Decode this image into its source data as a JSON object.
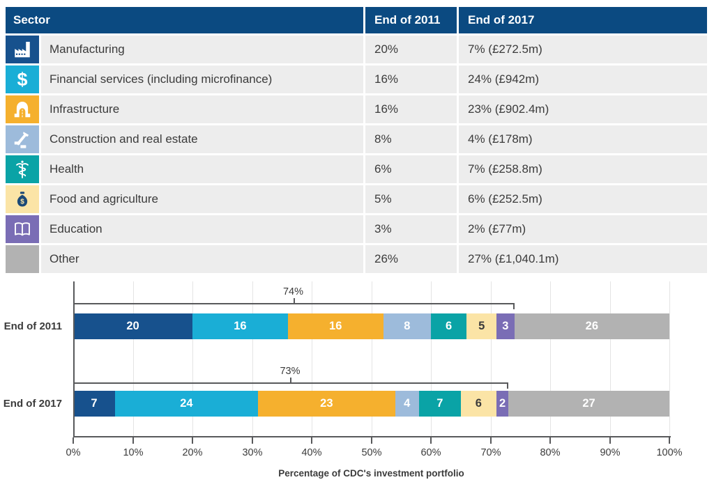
{
  "colors": {
    "header_bar": "#0B4A81",
    "row_background": "#EDEDED",
    "text": "#3B3B3B",
    "axis": "#58595B",
    "gridline": "#E4E4E4"
  },
  "table": {
    "header": {
      "sector": "Sector",
      "col2011": "End of 2011",
      "col2017": "End of 2017"
    },
    "rows": [
      {
        "sector": "Manufacturing",
        "v2011": "20%",
        "v2017": "7% (£272.5m)",
        "icon": "factory-icon",
        "color": "#17518D"
      },
      {
        "sector": "Financial services (including microfinance)",
        "v2011": "16%",
        "v2017": "24% (£942m)",
        "icon": "dollar-icon",
        "color": "#1AAED6"
      },
      {
        "sector": "Infrastructure",
        "v2011": "16%",
        "v2017": "23% (£902.4m)",
        "icon": "road-icon",
        "color": "#F5B02E"
      },
      {
        "sector": "Construction and real estate",
        "v2011": "8%",
        "v2017": "4% (£178m)",
        "icon": "hammer-icon",
        "color": "#9DBBDB"
      },
      {
        "sector": "Health",
        "v2011": "6%",
        "v2017": "7% (£258.8m)",
        "icon": "caduceus-icon",
        "color": "#0AA3A6"
      },
      {
        "sector": "Food and agriculture",
        "v2011": "5%",
        "v2017": "6% (£252.5m)",
        "icon": "money-bag-icon",
        "color": "#FBE4A6"
      },
      {
        "sector": "Education",
        "v2011": "3%",
        "v2017": "2% (£77m)",
        "icon": "open-book-icon",
        "color": "#7A6DB5"
      },
      {
        "sector": "Other",
        "v2011": "26%",
        "v2017": "27% (£1,040.1m)",
        "icon": null,
        "color": "#B2B2B2"
      }
    ]
  },
  "chart_data": {
    "type": "bar",
    "subtype": "horizontal-stacked",
    "categories": [
      "End of 2011",
      "End of 2017"
    ],
    "series": [
      {
        "name": "Manufacturing",
        "values": [
          20,
          7
        ],
        "color": "#17518D",
        "label_color": "#FFFFFF"
      },
      {
        "name": "Financial services (including microfinance)",
        "values": [
          16,
          24
        ],
        "color": "#1AAED6",
        "label_color": "#FFFFFF"
      },
      {
        "name": "Infrastructure",
        "values": [
          16,
          23
        ],
        "color": "#F5B02E",
        "label_color": "#FFFFFF"
      },
      {
        "name": "Construction and real estate",
        "values": [
          8,
          4
        ],
        "color": "#9DBBDB",
        "label_color": "#FFFFFF"
      },
      {
        "name": "Health",
        "values": [
          6,
          7
        ],
        "color": "#0AA3A6",
        "label_color": "#FFFFFF"
      },
      {
        "name": "Food and agriculture",
        "values": [
          5,
          6
        ],
        "color": "#FBE4A6",
        "label_color": "#3B3B3B"
      },
      {
        "name": "Education",
        "values": [
          3,
          2
        ],
        "color": "#7A6DB5",
        "label_color": "#FFFFFF"
      },
      {
        "name": "Other",
        "values": [
          26,
          27
        ],
        "color": "#B2B2B2",
        "label_color": "#FFFFFF"
      }
    ],
    "annotations": [
      {
        "category": "End of 2011",
        "label": "74%",
        "span_pct": 74
      },
      {
        "category": "End of 2017",
        "label": "73%",
        "span_pct": 73
      }
    ],
    "x_ticks": [
      "0%",
      "10%",
      "20%",
      "30%",
      "40%",
      "50%",
      "60%",
      "70%",
      "80%",
      "90%",
      "100%"
    ],
    "xlim": [
      0,
      100
    ],
    "xlabel": "Percentage of CDC's investment portfolio",
    "grid": true,
    "legend": "none"
  }
}
